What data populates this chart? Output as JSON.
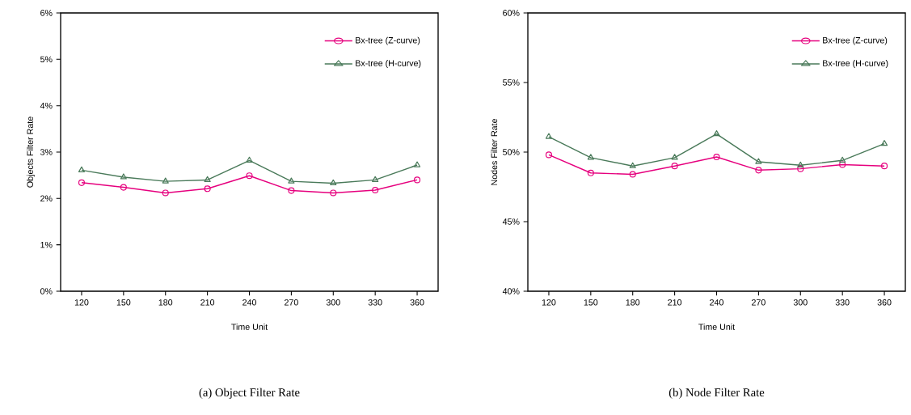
{
  "chart_data": [
    {
      "type": "line",
      "xlabel": "Time Unit",
      "ylabel": "Objects Filter Rate",
      "categories": [
        "120",
        "150",
        "180",
        "210",
        "240",
        "270",
        "300",
        "330",
        "360"
      ],
      "series": [
        {
          "name": "Bx-tree (Z-curve)",
          "color": "#e6007e",
          "marker": "circle",
          "values": [
            2.34,
            2.24,
            2.12,
            2.21,
            2.49,
            2.17,
            2.12,
            2.18,
            2.4
          ]
        },
        {
          "name": "Bx-tree (H-curve)",
          "color": "#4a7a5a",
          "marker": "triangle",
          "values": [
            2.61,
            2.46,
            2.37,
            2.4,
            2.82,
            2.37,
            2.33,
            2.4,
            2.72
          ]
        }
      ],
      "ylim": [
        0,
        6
      ],
      "yticks": [
        {
          "value": 0,
          "label": "0%"
        },
        {
          "value": 1,
          "label": "1%"
        },
        {
          "value": 2,
          "label": "2%"
        },
        {
          "value": 3,
          "label": "3%"
        },
        {
          "value": 4,
          "label": "4%"
        },
        {
          "value": 5,
          "label": "5%"
        },
        {
          "value": 6,
          "label": "6%"
        }
      ],
      "legend": "top right",
      "grid": false,
      "annotations": [
        "(a) Object Filter Rate"
      ]
    },
    {
      "type": "line",
      "xlabel": "Time Unit",
      "ylabel": "Nodes Filter Rate",
      "categories": [
        "120",
        "150",
        "180",
        "210",
        "240",
        "270",
        "300",
        "330",
        "360"
      ],
      "series": [
        {
          "name": "Bx-tree (Z-curve)",
          "color": "#e6007e",
          "marker": "circle",
          "values": [
            49.8,
            48.5,
            48.4,
            49.0,
            49.65,
            48.7,
            48.8,
            49.1,
            49.0
          ]
        },
        {
          "name": "Bx-tree (H-curve)",
          "color": "#4a7a5a",
          "marker": "triangle",
          "values": [
            51.1,
            49.6,
            49.0,
            49.6,
            51.3,
            49.3,
            49.05,
            49.4,
            50.6
          ]
        }
      ],
      "ylim": [
        40,
        60
      ],
      "yticks": [
        {
          "value": 40,
          "label": "40%"
        },
        {
          "value": 45,
          "label": "45%"
        },
        {
          "value": 50,
          "label": "50%"
        },
        {
          "value": 55,
          "label": "55%"
        },
        {
          "value": 60,
          "label": "60%"
        }
      ],
      "legend": "top right",
      "grid": false,
      "annotations": [
        "(b) Node Filter Rate"
      ]
    }
  ]
}
